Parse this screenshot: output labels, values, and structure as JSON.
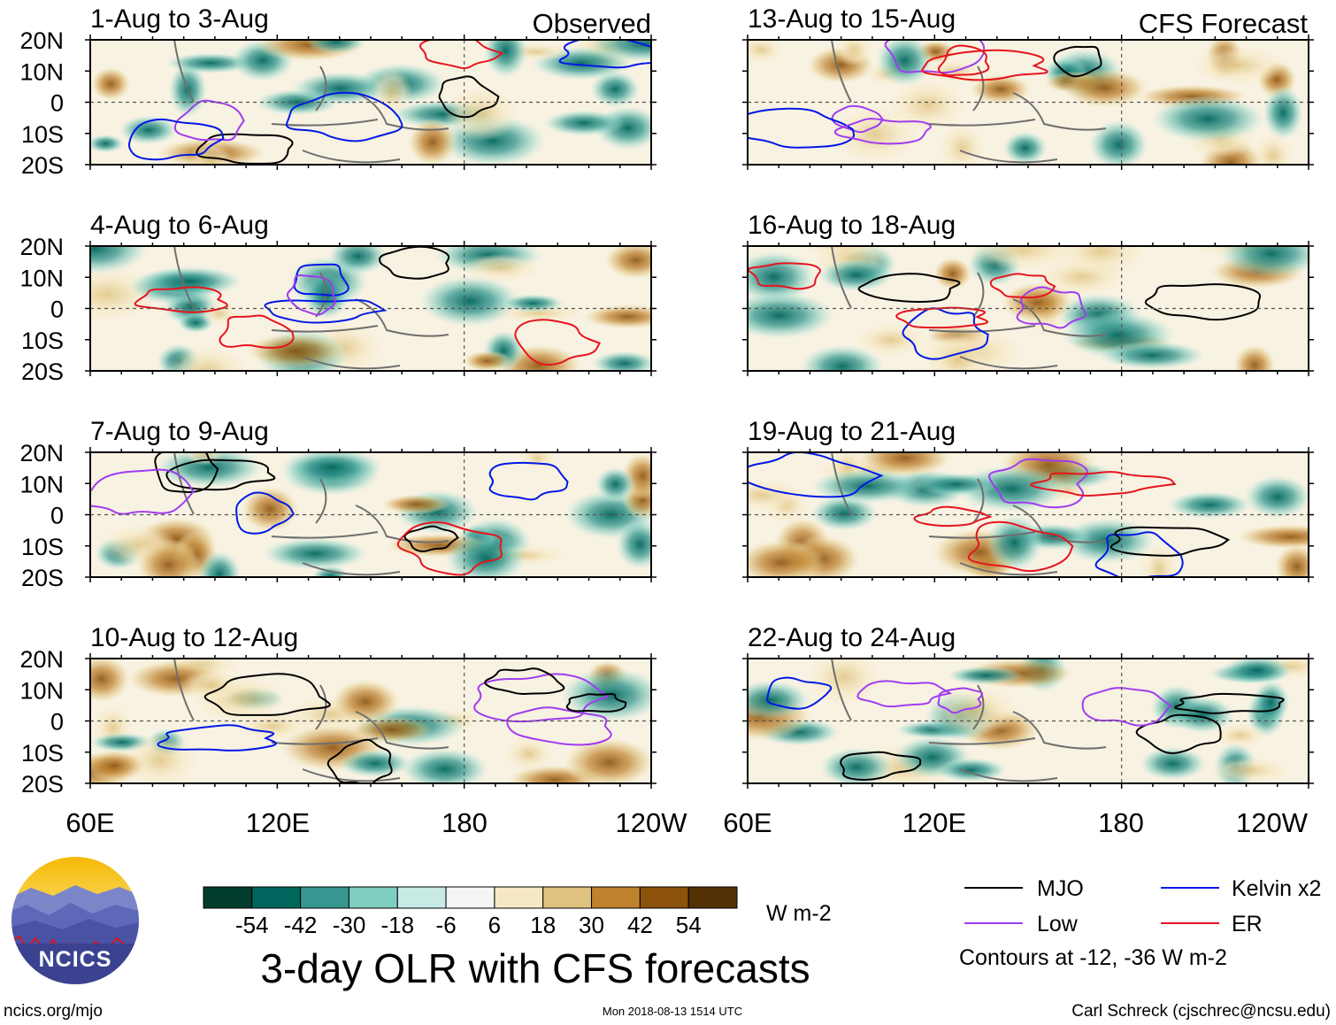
{
  "chart_data": {
    "type": "heatmap",
    "title": "3-day OLR with CFS forecasts",
    "column_labels": [
      "Observed",
      "CFS Forecast"
    ],
    "panels": [
      {
        "title": "1-Aug to 3-Aug",
        "column": "Observed"
      },
      {
        "title": "4-Aug to 6-Aug",
        "column": "Observed"
      },
      {
        "title": "7-Aug to 9-Aug",
        "column": "Observed"
      },
      {
        "title": "10-Aug to 12-Aug",
        "column": "Observed"
      },
      {
        "title": "13-Aug to 15-Aug",
        "column": "CFS Forecast"
      },
      {
        "title": "16-Aug to 18-Aug",
        "column": "CFS Forecast"
      },
      {
        "title": "19-Aug to 21-Aug",
        "column": "CFS Forecast"
      },
      {
        "title": "22-Aug to 24-Aug",
        "column": "CFS Forecast"
      }
    ],
    "lat_ticks": [
      "20N",
      "10N",
      "0",
      "10S",
      "20S"
    ],
    "lat_range": [
      -20,
      20
    ],
    "lon_ticks": [
      "60E",
      "120E",
      "180",
      "120W"
    ],
    "lon_range": [
      60,
      240
    ],
    "colorbar": {
      "units": "W m-2",
      "tick_labels": [
        "-54",
        "-42",
        "-30",
        "-18",
        "-6",
        "6",
        "18",
        "30",
        "42",
        "54"
      ],
      "colors": [
        "#013c2c",
        "#00665d",
        "#35978f",
        "#80cdc1",
        "#c7eae5",
        "#f5f5f5",
        "#f6e8c3",
        "#dfc27d",
        "#bf812d",
        "#8c510a",
        "#543005"
      ]
    },
    "legend": [
      {
        "label": "MJO",
        "color": "#000000"
      },
      {
        "label": "Kelvin x2",
        "color": "#0018e6"
      },
      {
        "label": "Low",
        "color": "#a03cf0"
      },
      {
        "label": "ER",
        "color": "#e6141e"
      }
    ],
    "contour_note": "Contours at -12, -36 W m-2"
  },
  "footer": {
    "site": "ncics.org/mjo",
    "timestamp": "Mon 2018-08-13 1514 UTC",
    "author": "Carl Schreck (cjschrec@ncsu.edu)",
    "logo_text": "NCICS"
  }
}
